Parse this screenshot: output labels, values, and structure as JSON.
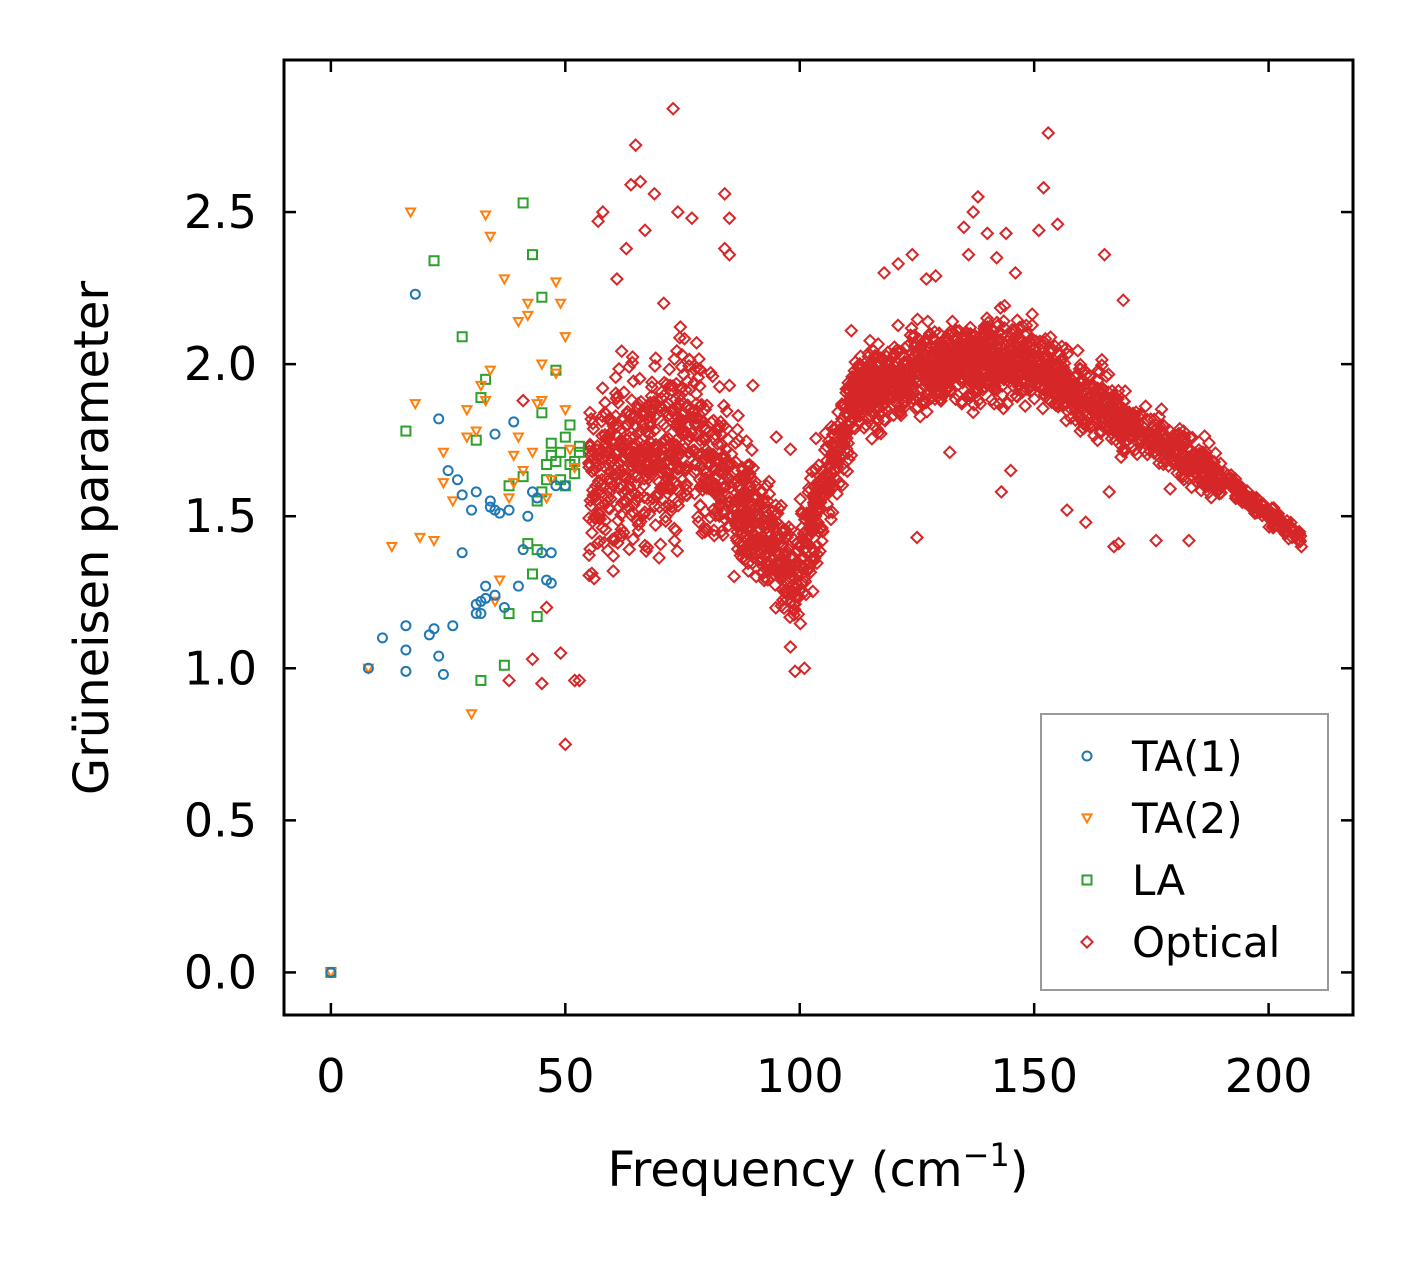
{
  "chart_data": {
    "type": "scatter",
    "title": "",
    "xlabel_main": "Frequency (cm",
    "xlabel_sup": "−1",
    "xlabel_close": ")",
    "ylabel": "Grüneisen parameter",
    "xlim": [
      -10,
      218
    ],
    "ylim": [
      -0.14,
      3.0
    ],
    "xticks": [
      0,
      50,
      100,
      150,
      200
    ],
    "xtick_labels": [
      "0",
      "50",
      "100",
      "150",
      "200"
    ],
    "yticks": [
      0.0,
      0.5,
      1.0,
      1.5,
      2.0,
      2.5
    ],
    "ytick_labels": [
      "0.0",
      "0.5",
      "1.0",
      "1.5",
      "2.0",
      "2.5"
    ],
    "legend_position": "lower-right",
    "series": [
      {
        "name": "TA(1)",
        "marker": "circle",
        "color": "#1f77b4",
        "points": [
          [
            0,
            0
          ],
          [
            8,
            1.0
          ],
          [
            11,
            1.1
          ],
          [
            16,
            1.14
          ],
          [
            16,
            1.06
          ],
          [
            16,
            0.99
          ],
          [
            18,
            2.23
          ],
          [
            21,
            1.11
          ],
          [
            22,
            1.13
          ],
          [
            23,
            1.82
          ],
          [
            23,
            1.04
          ],
          [
            24,
            0.98
          ],
          [
            25,
            1.65
          ],
          [
            26,
            1.14
          ],
          [
            27,
            1.62
          ],
          [
            28,
            1.57
          ],
          [
            28,
            1.38
          ],
          [
            30,
            1.52
          ],
          [
            31,
            1.58
          ],
          [
            31,
            1.21
          ],
          [
            31,
            1.18
          ],
          [
            32,
            1.18
          ],
          [
            32,
            1.22
          ],
          [
            33,
            1.27
          ],
          [
            33,
            1.23
          ],
          [
            34,
            1.55
          ],
          [
            34,
            1.53
          ],
          [
            35,
            1.24
          ],
          [
            35,
            1.77
          ],
          [
            35,
            1.52
          ],
          [
            36,
            1.51
          ],
          [
            37,
            1.2
          ],
          [
            38,
            1.52
          ],
          [
            39,
            1.81
          ],
          [
            40,
            1.27
          ],
          [
            41,
            1.39
          ],
          [
            42,
            1.5
          ],
          [
            43,
            1.58
          ],
          [
            44,
            1.56
          ],
          [
            45,
            1.38
          ],
          [
            46,
            1.29
          ],
          [
            47,
            1.28
          ],
          [
            47,
            1.38
          ],
          [
            48,
            1.6
          ],
          [
            50,
            1.6
          ]
        ]
      },
      {
        "name": "TA(2)",
        "marker": "triangle-down",
        "color": "#ff7f0e",
        "points": [
          [
            0,
            0
          ],
          [
            8,
            1.0
          ],
          [
            13,
            1.4
          ],
          [
            17,
            2.5
          ],
          [
            18,
            1.87
          ],
          [
            19,
            1.43
          ],
          [
            22,
            1.42
          ],
          [
            24,
            1.71
          ],
          [
            24,
            1.61
          ],
          [
            26,
            1.55
          ],
          [
            29,
            1.85
          ],
          [
            29,
            1.76
          ],
          [
            30,
            0.85
          ],
          [
            31,
            1.78
          ],
          [
            32,
            1.93
          ],
          [
            33,
            1.88
          ],
          [
            33,
            2.49
          ],
          [
            34,
            2.42
          ],
          [
            34,
            1.98
          ],
          [
            35,
            1.22
          ],
          [
            36,
            1.29
          ],
          [
            37,
            2.28
          ],
          [
            38,
            1.56
          ],
          [
            39,
            1.61
          ],
          [
            39,
            1.7
          ],
          [
            40,
            2.14
          ],
          [
            40,
            1.76
          ],
          [
            41,
            1.65
          ],
          [
            42,
            2.2
          ],
          [
            42,
            2.16
          ],
          [
            43,
            1.71
          ],
          [
            44,
            1.87
          ],
          [
            45,
            2.0
          ],
          [
            45,
            1.88
          ],
          [
            46,
            1.56
          ],
          [
            47,
            1.62
          ],
          [
            48,
            2.27
          ],
          [
            48,
            1.97
          ],
          [
            49,
            2.2
          ],
          [
            50,
            2.09
          ],
          [
            50,
            1.85
          ],
          [
            51,
            1.72
          ],
          [
            52,
            1.66
          ]
        ]
      },
      {
        "name": "LA",
        "marker": "square",
        "color": "#2ca02c",
        "points": [
          [
            0,
            0
          ],
          [
            16,
            1.78
          ],
          [
            22,
            2.34
          ],
          [
            28,
            2.09
          ],
          [
            31,
            1.75
          ],
          [
            32,
            1.89
          ],
          [
            32,
            0.96
          ],
          [
            33,
            1.95
          ],
          [
            37,
            1.01
          ],
          [
            38,
            1.18
          ],
          [
            38,
            1.6
          ],
          [
            41,
            2.53
          ],
          [
            41,
            1.63
          ],
          [
            42,
            1.41
          ],
          [
            43,
            1.31
          ],
          [
            43,
            2.36
          ],
          [
            44,
            1.39
          ],
          [
            44,
            1.55
          ],
          [
            45,
            1.84
          ],
          [
            45,
            2.22
          ],
          [
            45,
            1.58
          ],
          [
            46,
            1.67
          ],
          [
            46,
            1.62
          ],
          [
            47,
            1.7
          ],
          [
            47,
            1.74
          ],
          [
            48,
            1.68
          ],
          [
            48,
            1.98
          ],
          [
            49,
            1.71
          ],
          [
            49,
            1.62
          ],
          [
            50,
            1.6
          ],
          [
            50,
            1.76
          ],
          [
            51,
            1.8
          ],
          [
            51,
            1.67
          ],
          [
            52,
            1.68
          ],
          [
            52,
            1.64
          ],
          [
            53,
            1.73
          ],
          [
            53,
            1.71
          ],
          [
            44,
            1.17
          ]
        ]
      },
      {
        "name": "Optical",
        "marker": "diamond",
        "color": "#d62728",
        "points": [
          [
            38,
            0.96
          ],
          [
            41,
            1.88
          ],
          [
            43,
            1.03
          ],
          [
            45,
            0.95
          ],
          [
            46,
            1.2
          ],
          [
            49,
            1.05
          ],
          [
            50,
            0.75
          ],
          [
            52,
            0.96
          ],
          [
            53,
            0.96
          ],
          [
            57,
            2.47
          ],
          [
            58,
            2.5
          ],
          [
            61,
            2.28
          ],
          [
            63,
            2.38
          ],
          [
            64,
            2.59
          ],
          [
            65,
            2.72
          ],
          [
            66,
            2.6
          ],
          [
            67,
            2.44
          ],
          [
            69,
            2.56
          ],
          [
            71,
            2.2
          ],
          [
            73,
            2.84
          ],
          [
            74,
            2.5
          ],
          [
            77,
            2.48
          ],
          [
            78,
            2.07
          ],
          [
            84,
            2.56
          ],
          [
            84,
            2.38
          ],
          [
            85,
            2.48
          ],
          [
            85,
            1.93
          ],
          [
            85,
            2.36
          ],
          [
            87,
            1.75
          ],
          [
            90,
            1.93
          ],
          [
            93,
            1.6
          ],
          [
            95,
            1.76
          ],
          [
            98,
            1.72
          ],
          [
            98,
            1.07
          ],
          [
            99,
            0.99
          ],
          [
            101,
            1.0
          ],
          [
            104,
            1.45
          ],
          [
            111,
            2.11
          ],
          [
            118,
            2.3
          ],
          [
            121,
            2.33
          ],
          [
            124,
            2.36
          ],
          [
            125,
            1.43
          ],
          [
            127,
            2.28
          ],
          [
            129,
            2.29
          ],
          [
            132,
            1.71
          ],
          [
            135,
            2.45
          ],
          [
            136,
            2.36
          ],
          [
            137,
            2.5
          ],
          [
            138,
            2.55
          ],
          [
            140,
            2.43
          ],
          [
            142,
            2.35
          ],
          [
            143,
            1.58
          ],
          [
            144,
            2.43
          ],
          [
            145,
            1.65
          ],
          [
            146,
            2.3
          ],
          [
            151,
            2.44
          ],
          [
            152,
            2.58
          ],
          [
            153,
            2.76
          ],
          [
            155,
            2.46
          ],
          [
            157,
            1.52
          ],
          [
            161,
            1.48
          ],
          [
            165,
            2.36
          ],
          [
            166,
            1.58
          ],
          [
            167,
            1.4
          ],
          [
            168,
            1.41
          ],
          [
            169,
            2.21
          ],
          [
            176,
            1.42
          ],
          [
            179,
            1.59
          ],
          [
            183,
            1.42
          ],
          [
            195,
            1.56
          ],
          [
            200,
            1.51
          ],
          [
            205,
            1.43
          ],
          [
            207,
            1.4
          ]
        ],
        "bands": [
          {
            "x": [
              55,
              75
            ],
            "y_center": [
              1.6,
              1.78
            ],
            "y_spread": [
              0.55,
              0.6
            ],
            "count": 450
          },
          {
            "x": [
              75,
              90
            ],
            "y_center": [
              1.78,
              1.5
            ],
            "y_spread": [
              0.5,
              0.45
            ],
            "count": 300
          },
          {
            "x": [
              90,
              100
            ],
            "y_center": [
              1.5,
              1.28
            ],
            "y_spread": [
              0.35,
              0.3
            ],
            "count": 200
          },
          {
            "x": [
              100,
              112
            ],
            "y_center": [
              1.35,
              1.9
            ],
            "y_spread": [
              0.35,
              0.3
            ],
            "count": 250
          },
          {
            "x": [
              112,
              130
            ],
            "y_center": [
              1.9,
              2.0
            ],
            "y_spread": [
              0.25,
              0.25
            ],
            "count": 420
          },
          {
            "x": [
              130,
              150
            ],
            "y_center": [
              2.0,
              2.02
            ],
            "y_spread": [
              0.25,
              0.25
            ],
            "count": 480
          },
          {
            "x": [
              150,
              170
            ],
            "y_center": [
              2.0,
              1.8
            ],
            "y_spread": [
              0.22,
              0.22
            ],
            "count": 380
          },
          {
            "x": [
              170,
              190
            ],
            "y_center": [
              1.8,
              1.63
            ],
            "y_spread": [
              0.15,
              0.15
            ],
            "count": 280
          },
          {
            "x": [
              190,
              207
            ],
            "y_center": [
              1.63,
              1.42
            ],
            "y_spread": [
              0.06,
              0.06
            ],
            "count": 140
          }
        ]
      }
    ]
  }
}
